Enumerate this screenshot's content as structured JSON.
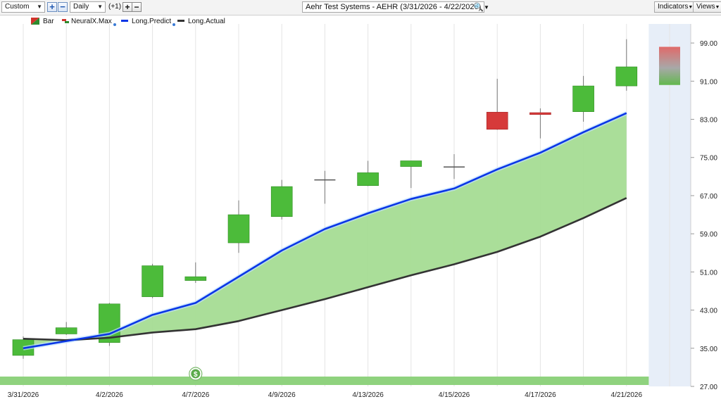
{
  "toolbar": {
    "period_select": "Custom",
    "interval_select": "Daily",
    "offset_label": "(+1)",
    "chart_title": "Aehr Test Systems - AEHR (3/31/2026 - 4/22/2026)",
    "indicators_label": "Indicators",
    "views_label": "Views"
  },
  "legend": {
    "items": [
      {
        "label": "Bar",
        "icon": "bar-icon"
      },
      {
        "label": "NeuralX.Max",
        "icon": "neuralx-icon"
      },
      {
        "label": "Long.Predict",
        "icon": "line-blue-icon",
        "color": "#0a36e6"
      },
      {
        "label": "Long.Actual",
        "icon": "line-dark-icon",
        "color": "#333333"
      }
    ]
  },
  "chart_data": {
    "type": "candlestick",
    "title": "Aehr Test Systems - AEHR (3/31/2026 - 4/22/2026)",
    "ylim": [
      27,
      103
    ],
    "y_ticks": [
      "99.00",
      "91.00",
      "83.00",
      "75.00",
      "67.00",
      "59.00",
      "51.00",
      "43.00",
      "35.00",
      "27.00"
    ],
    "x_labels": [
      {
        "label": "3/31/2026",
        "index": 0
      },
      {
        "label": "4/2/2026",
        "index": 2
      },
      {
        "label": "4/7/2026",
        "index": 4
      },
      {
        "label": "4/9/2026",
        "index": 6
      },
      {
        "label": "4/13/2026",
        "index": 8
      },
      {
        "label": "4/15/2026",
        "index": 10
      },
      {
        "label": "4/17/2026",
        "index": 12
      },
      {
        "label": "4/21/2026",
        "index": 14
      }
    ],
    "candles": [
      {
        "o": 33.5,
        "h": 37.5,
        "l": 32.8,
        "c": 36.8
      },
      {
        "o": 38.0,
        "h": 40.5,
        "l": 37.8,
        "c": 39.3
      },
      {
        "o": 36.2,
        "h": 44.5,
        "l": 35.5,
        "c": 44.3
      },
      {
        "o": 45.8,
        "h": 52.7,
        "l": 45.5,
        "c": 52.3
      },
      {
        "o": 49.2,
        "h": 53.0,
        "l": 48.7,
        "c": 50.0
      },
      {
        "o": 57.1,
        "h": 66.0,
        "l": 55.0,
        "c": 63.0
      },
      {
        "o": 62.6,
        "h": 70.3,
        "l": 62.0,
        "c": 68.9
      },
      {
        "o": 70.3,
        "h": 72.2,
        "l": 65.3,
        "c": 70.3
      },
      {
        "o": 69.1,
        "h": 74.3,
        "l": 69.0,
        "c": 71.8
      },
      {
        "o": 73.1,
        "h": 74.3,
        "l": 68.6,
        "c": 74.3
      },
      {
        "o": 73.0,
        "h": 75.7,
        "l": 70.5,
        "c": 73.0
      },
      {
        "o": 84.5,
        "h": 91.5,
        "l": 80.8,
        "c": 80.9
      },
      {
        "o": 84.4,
        "h": 85.3,
        "l": 79.0,
        "c": 84.0
      },
      {
        "o": 84.6,
        "h": 92.1,
        "l": 82.5,
        "c": 90.0
      },
      {
        "o": 90.0,
        "h": 99.8,
        "l": 89.0,
        "c": 94.0
      }
    ],
    "neuralx_max": {
      "index": 15,
      "top": 98.2,
      "bottom": 90.2
    },
    "series": [
      {
        "name": "Long.Predict",
        "color": "#0a36e6",
        "values": [
          35.0,
          36.5,
          38.0,
          42.0,
          44.5,
          50.0,
          55.5,
          60.0,
          63.3,
          66.3,
          68.5,
          72.5,
          76.0,
          80.3,
          84.3
        ]
      },
      {
        "name": "Long.Actual",
        "color": "#333333",
        "values": [
          37.0,
          36.7,
          37.2,
          38.3,
          39.0,
          40.7,
          43.0,
          45.3,
          47.8,
          50.3,
          52.6,
          55.2,
          58.4,
          62.3,
          66.5
        ]
      }
    ],
    "projection_zone_index": 15,
    "signal_marker": {
      "index": 4,
      "label": "$"
    }
  }
}
